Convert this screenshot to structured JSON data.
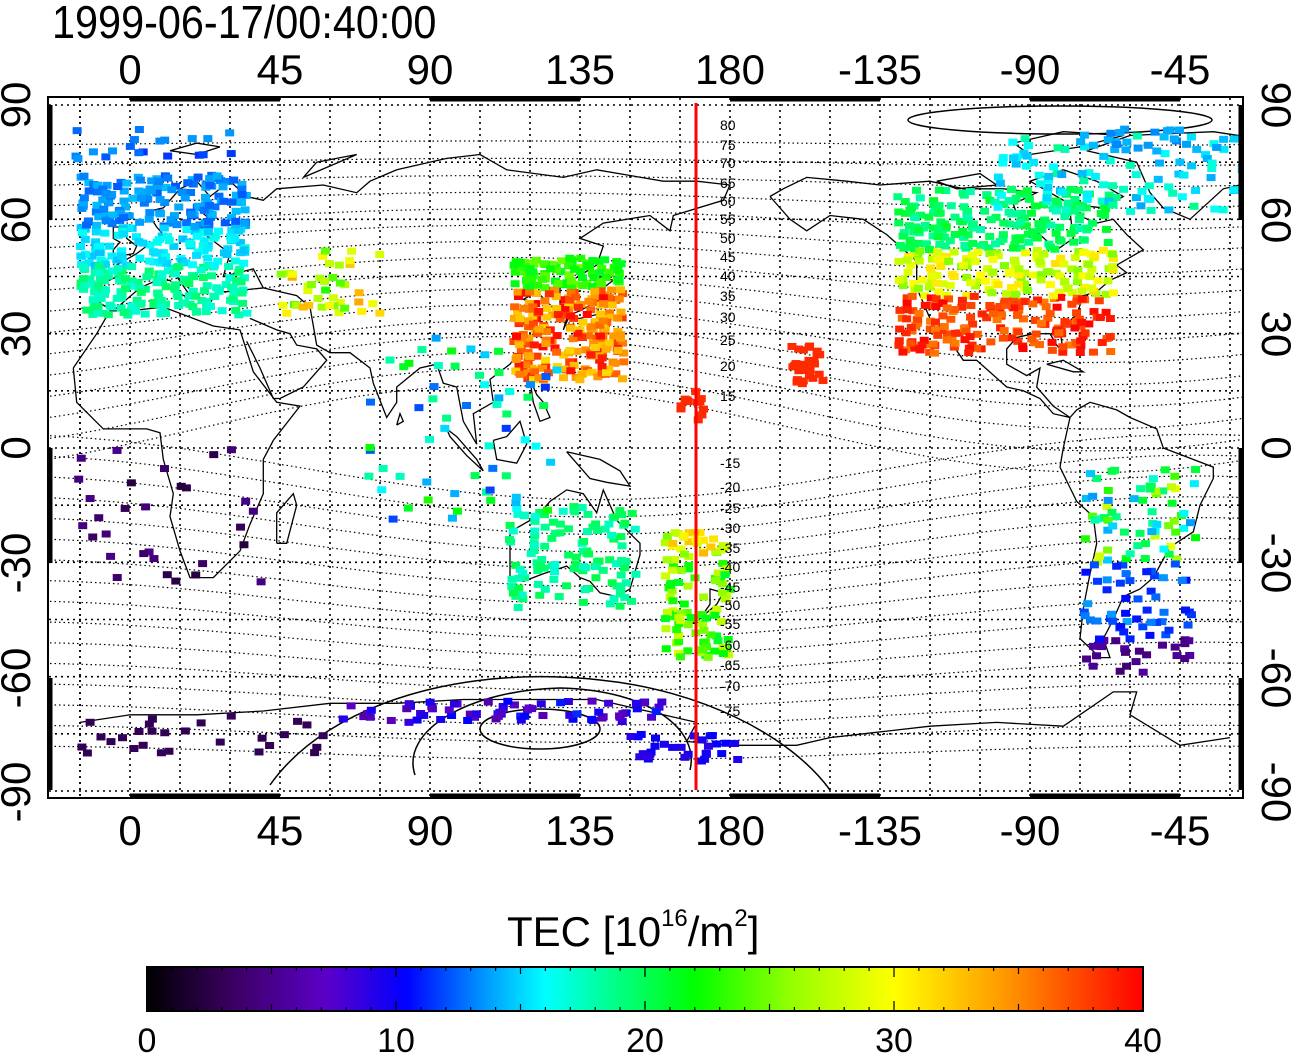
{
  "title": "1999-06-17/00:40:00",
  "map": {
    "projection": "equirectangular",
    "lon_center": 180,
    "x_axis_top_labels": [
      "0",
      "45",
      "90",
      "135",
      "180",
      "-135",
      "-90",
      "-45"
    ],
    "x_axis_bottom_labels": [
      "0",
      "45",
      "90",
      "135",
      "180",
      "-135",
      "-90",
      "-45"
    ],
    "y_axis_left_labels": [
      "90",
      "60",
      "30",
      "0",
      "-30",
      "-60",
      "-90"
    ],
    "y_axis_right_labels": [
      "90",
      "60",
      "30",
      "0",
      "-30",
      "-60",
      "-90"
    ],
    "meridian_marker": {
      "lon": 170,
      "color": "#ff0000"
    },
    "contour_labels": [
      "80",
      "75",
      "70",
      "65",
      "60",
      "55",
      "50",
      "45",
      "40",
      "35",
      "30",
      "25",
      "20",
      "15",
      "-15",
      "-20",
      "-25",
      "-30",
      "-35",
      "-40",
      "-45",
      "-50",
      "-55",
      "-60",
      "-65",
      "-70",
      "-75"
    ]
  },
  "colorbar": {
    "title_prefix": "TEC  [10",
    "title_exp1": "16",
    "title_mid": "/m",
    "title_exp2": "2",
    "title_suffix": "]",
    "min": 0,
    "max": 40,
    "tick_labels": [
      "0",
      "10",
      "20",
      "30",
      "40"
    ],
    "colors": [
      "#000000",
      "#3d0066",
      "#5b00c8",
      "#0000ff",
      "#0099ff",
      "#00ffff",
      "#00ff66",
      "#00ff00",
      "#aaff00",
      "#ffff00",
      "#ff9900",
      "#ff0000"
    ]
  },
  "colors": {
    "coast": "#000000",
    "grid": "#000000",
    "marker": "#ff0000"
  }
}
